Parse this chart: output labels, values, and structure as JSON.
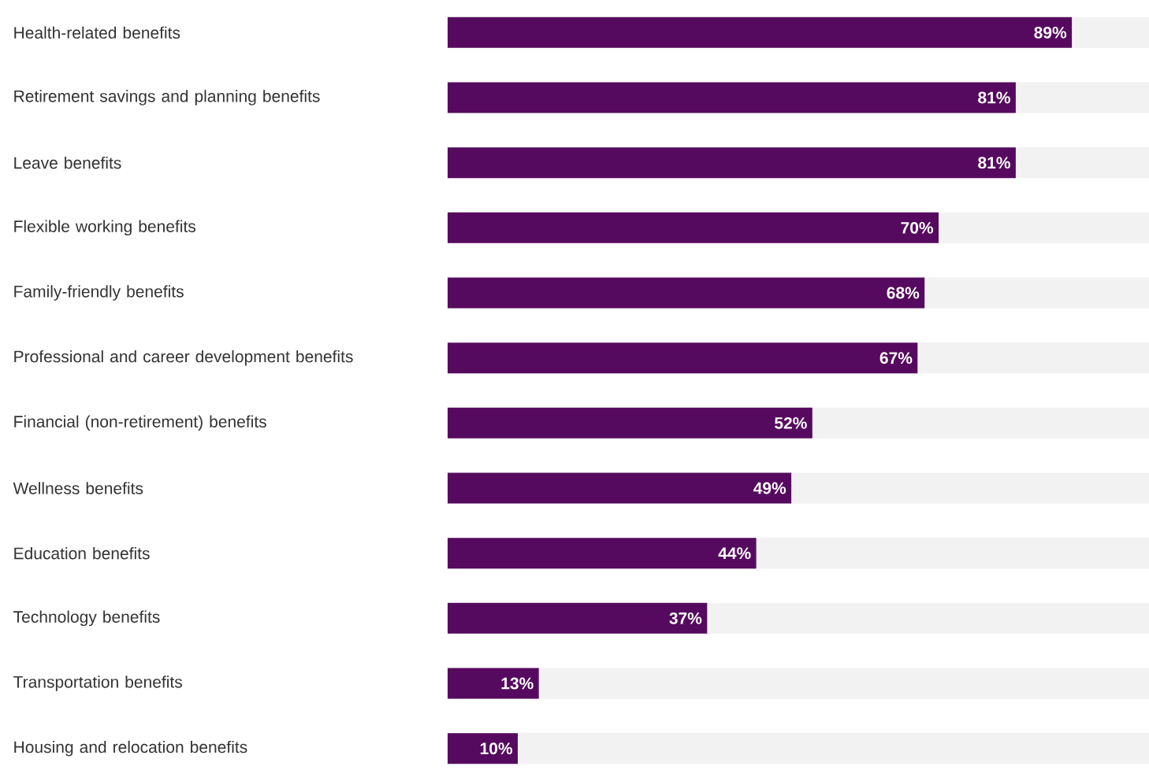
{
  "chart_data": {
    "type": "bar",
    "orientation": "horizontal",
    "categories": [
      "Health-related benefits",
      "Retirement savings and planning benefits",
      "Leave benefits",
      "Flexible working benefits",
      "Family-friendly benefits",
      "Professional and career development benefits",
      "Financial (non-retirement) benefits",
      "Wellness benefits",
      "Education benefits",
      "Technology benefits",
      "Transportation benefits",
      "Housing and relocation benefits"
    ],
    "values": [
      89,
      81,
      81,
      70,
      68,
      67,
      52,
      49,
      44,
      37,
      13,
      10
    ],
    "value_labels": [
      "89%",
      "81%",
      "81%",
      "70%",
      "68%",
      "67%",
      "52%",
      "49%",
      "44%",
      "37%",
      "13%",
      "10%"
    ],
    "color": "#560a5f",
    "xlim": [
      0,
      100
    ],
    "tick_labels": "y"
  }
}
